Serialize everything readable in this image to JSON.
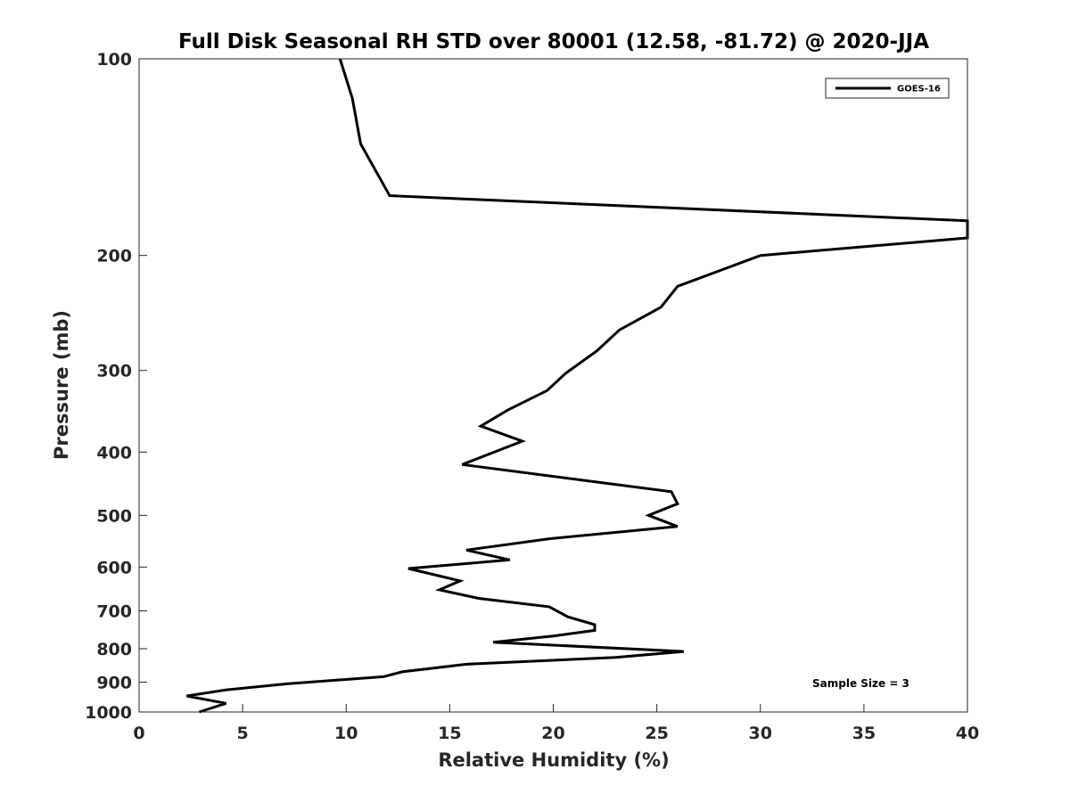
{
  "chart_data": {
    "type": "line",
    "title": "Full Disk Seasonal RH STD over 80001 (12.58, -81.72) @ 2020-JJA",
    "xlabel": "Relative Humidity (%)",
    "ylabel": "Pressure (mb)",
    "xlim": [
      0,
      40
    ],
    "ylim": [
      1000,
      100
    ],
    "yscale": "log",
    "y_reversed": true,
    "x_ticks": [
      "0",
      "5",
      "10",
      "15",
      "20",
      "25",
      "30",
      "35",
      "40"
    ],
    "y_ticks": [
      "100",
      "200",
      "300",
      "400",
      "500",
      "600",
      "700",
      "800",
      "900",
      "1000"
    ],
    "grid": false,
    "legend_position": "top-right",
    "series": [
      {
        "name": "GOES-16",
        "color": "#000000",
        "points": [
          [
            9.7,
            100
          ],
          [
            10.3,
            115
          ],
          [
            10.7,
            135
          ],
          [
            12.1,
            162
          ],
          [
            40.0,
            177
          ],
          [
            40.0,
            188
          ],
          [
            30.0,
            200
          ],
          [
            26.0,
            223
          ],
          [
            25.2,
            240
          ],
          [
            23.2,
            260
          ],
          [
            22.1,
            280
          ],
          [
            20.6,
            303
          ],
          [
            19.7,
            322
          ],
          [
            17.8,
            345
          ],
          [
            16.5,
            365
          ],
          [
            18.5,
            385
          ],
          [
            15.6,
            418
          ],
          [
            25.7,
            460
          ],
          [
            26.0,
            480
          ],
          [
            24.6,
            500
          ],
          [
            26.0,
            520
          ],
          [
            19.8,
            543
          ],
          [
            15.8,
            565
          ],
          [
            17.9,
            585
          ],
          [
            13.0,
            603
          ],
          [
            15.5,
            630
          ],
          [
            14.5,
            650
          ],
          [
            16.4,
            670
          ],
          [
            19.8,
            690
          ],
          [
            20.7,
            715
          ],
          [
            22.0,
            735
          ],
          [
            22.0,
            750
          ],
          [
            20.0,
            765
          ],
          [
            17.1,
            782
          ],
          [
            26.3,
            808
          ],
          [
            23.0,
            825
          ],
          [
            15.8,
            845
          ],
          [
            12.7,
            868
          ],
          [
            11.8,
            883
          ],
          [
            7.2,
            905
          ],
          [
            4.2,
            925
          ],
          [
            2.3,
            945
          ],
          [
            4.2,
            970
          ],
          [
            2.9,
            1000
          ]
        ]
      }
    ],
    "annotation": "Sample Size = 3"
  }
}
